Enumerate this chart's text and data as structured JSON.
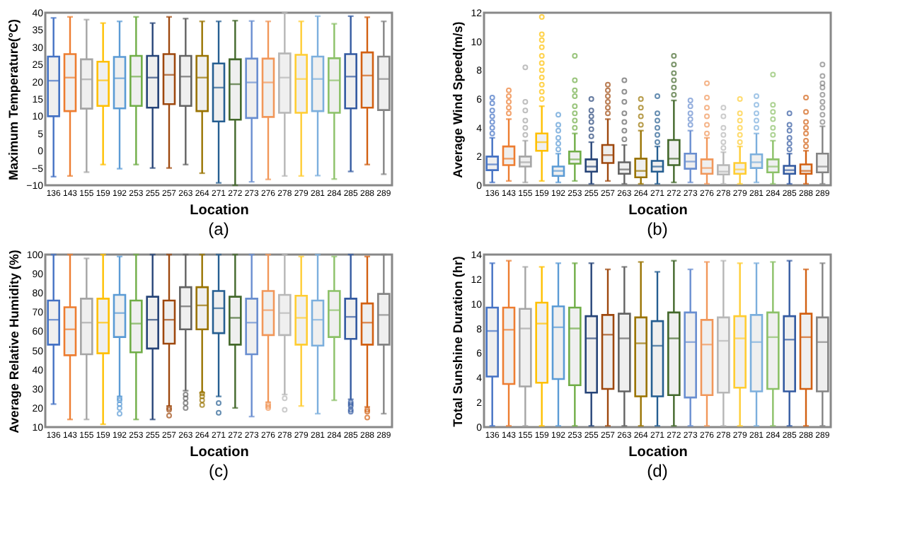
{
  "chart_data": [
    {
      "type": "box",
      "xlabel": "Location",
      "ylabel": "Maximum Temperature(°C)",
      "annotations": [
        "(a)"
      ],
      "categories": [
        "136",
        "143",
        "155",
        "159",
        "192",
        "253",
        "255",
        "257",
        "263",
        "264",
        "271",
        "272",
        "273",
        "276",
        "278",
        "279",
        "281",
        "284",
        "285",
        "288",
        "289"
      ],
      "colors": [
        "#4472c4",
        "#ed7d31",
        "#a5a5a5",
        "#ffc000",
        "#5b9bd5",
        "#70ad47",
        "#264478",
        "#9e480e",
        "#636363",
        "#997300",
        "#255e91",
        "#43682b",
        "#698ed0",
        "#f1975a",
        "#b7b7b7",
        "#ffcd33",
        "#7cafdd",
        "#8cc168",
        "#335aa1",
        "#d26012",
        "#848484"
      ],
      "ylim": [
        -10,
        40
      ],
      "yticks": [
        -10,
        -5,
        0,
        5,
        10,
        15,
        20,
        25,
        30,
        35,
        40
      ],
      "boxes": [
        {
          "low": -7.5,
          "q1": 10,
          "median": 20.3,
          "q3": 27.3,
          "high": 38.5
        },
        {
          "low": -7.3,
          "q1": 11.5,
          "median": 21.2,
          "q3": 28,
          "high": 38.8
        },
        {
          "low": -6.2,
          "q1": 12.2,
          "median": 20.7,
          "q3": 26.5,
          "high": 38
        },
        {
          "low": -4,
          "q1": 13,
          "median": 20.4,
          "q3": 25.8,
          "high": 37
        },
        {
          "low": -5.2,
          "q1": 12.3,
          "median": 21,
          "q3": 27.2,
          "high": 37.5
        },
        {
          "low": -4,
          "q1": 13,
          "median": 21.5,
          "q3": 27.5,
          "high": 38.8
        },
        {
          "low": -5,
          "q1": 12.5,
          "median": 21.2,
          "q3": 27.5,
          "high": 37
        },
        {
          "low": -5,
          "q1": 13.5,
          "median": 22,
          "q3": 28,
          "high": 38.8
        },
        {
          "low": -4,
          "q1": 13,
          "median": 21.5,
          "q3": 27.5,
          "high": 38.3
        },
        {
          "low": -6.5,
          "q1": 11.5,
          "median": 21.2,
          "q3": 27.5,
          "high": 37.5
        },
        {
          "low": -9.3,
          "q1": 8.5,
          "median": 18.3,
          "q3": 25.3,
          "high": 37.5
        },
        {
          "low": -10,
          "q1": 9,
          "median": 19.3,
          "q3": 26.5,
          "high": 37.7
        },
        {
          "low": -9,
          "q1": 9.5,
          "median": 19.8,
          "q3": 26.7,
          "high": 37.6
        },
        {
          "low": -8.3,
          "q1": 9.8,
          "median": 19.8,
          "q3": 26.7,
          "high": 37.5
        },
        {
          "low": -7.3,
          "q1": 11,
          "median": 21.2,
          "q3": 28.2,
          "high": 40
        },
        {
          "low": -7.3,
          "q1": 11,
          "median": 20.8,
          "q3": 27.8,
          "high": 37.5
        },
        {
          "low": -7.2,
          "q1": 11.5,
          "median": 20.8,
          "q3": 27.3,
          "high": 39
        },
        {
          "low": -8.2,
          "q1": 11,
          "median": 20.4,
          "q3": 26.8,
          "high": 36.8
        },
        {
          "low": -6,
          "q1": 12.3,
          "median": 21.5,
          "q3": 28,
          "high": 39
        },
        {
          "low": -4,
          "q1": 12.5,
          "median": 21.8,
          "q3": 28.5,
          "high": 38.7
        },
        {
          "low": -6.8,
          "q1": 11.8,
          "median": 20.8,
          "q3": 27.3,
          "high": 37.5
        }
      ]
    },
    {
      "type": "box",
      "xlabel": "Location",
      "ylabel": "Average Wind Speed(m/s)",
      "annotations": [
        "(b)"
      ],
      "categories": [
        "136",
        "143",
        "155",
        "159",
        "192",
        "253",
        "255",
        "257",
        "263",
        "264",
        "271",
        "272",
        "273",
        "276",
        "278",
        "279",
        "281",
        "284",
        "285",
        "288",
        "289"
      ],
      "colors": [
        "#4472c4",
        "#ed7d31",
        "#a5a5a5",
        "#ffc000",
        "#5b9bd5",
        "#70ad47",
        "#264478",
        "#9e480e",
        "#636363",
        "#997300",
        "#255e91",
        "#43682b",
        "#698ed0",
        "#f1975a",
        "#b7b7b7",
        "#ffcd33",
        "#7cafdd",
        "#8cc168",
        "#335aa1",
        "#d26012",
        "#848484"
      ],
      "ylim": [
        0,
        12
      ],
      "yticks": [
        0,
        2,
        4,
        6,
        8,
        10,
        12
      ],
      "boxes": [
        {
          "low": 0.2,
          "q1": 1.05,
          "median": 1.45,
          "q3": 2.0,
          "high": 3.3,
          "outliers": [
            3.6,
            4.0,
            4.4,
            4.8,
            5.2,
            5.7,
            6.1
          ]
        },
        {
          "low": 0.3,
          "q1": 1.4,
          "median": 1.85,
          "q3": 2.7,
          "high": 4.6,
          "outliers": [
            5.0,
            5.4,
            5.8,
            6.2,
            6.6
          ]
        },
        {
          "low": 0.2,
          "q1": 1.3,
          "median": 1.6,
          "q3": 2.0,
          "high": 3.1,
          "outliers": [
            3.5,
            4.0,
            4.5,
            5.2,
            5.8,
            8.2
          ]
        },
        {
          "low": 0.3,
          "q1": 2.4,
          "median": 3.0,
          "q3": 3.6,
          "high": 5.5,
          "outliers": [
            6.0,
            6.5,
            7.0,
            7.5,
            8.0,
            8.5,
            9.0,
            9.6,
            10.1,
            10.5,
            11.7
          ]
        },
        {
          "low": 0.2,
          "q1": 0.65,
          "median": 1.0,
          "q3": 1.3,
          "high": 2.2,
          "outliers": [
            2.5,
            2.9,
            3.3,
            3.8,
            4.2,
            4.9
          ]
        },
        {
          "low": 0.3,
          "q1": 1.5,
          "median": 1.8,
          "q3": 2.35,
          "high": 3.6,
          "outliers": [
            4.0,
            4.5,
            5.0,
            5.5,
            6.2,
            6.6,
            7.3,
            9.0
          ]
        },
        {
          "low": 0.1,
          "q1": 0.95,
          "median": 1.3,
          "q3": 1.8,
          "high": 3.0,
          "outliers": [
            3.4,
            3.9,
            4.4,
            4.8,
            5.2,
            6.0
          ]
        },
        {
          "low": 0.3,
          "q1": 1.55,
          "median": 2.1,
          "q3": 2.8,
          "high": 4.6,
          "outliers": [
            5.0,
            5.4,
            5.8,
            6.2,
            6.6,
            7.0
          ]
        },
        {
          "low": 0.1,
          "q1": 0.8,
          "median": 1.1,
          "q3": 1.6,
          "high": 2.8,
          "outliers": [
            3.2,
            3.8,
            4.4,
            5.0,
            5.8,
            6.5,
            7.3
          ]
        },
        {
          "low": 0.1,
          "q1": 0.55,
          "median": 1.0,
          "q3": 1.85,
          "high": 3.8,
          "outliers": [
            4.2,
            4.8,
            5.4,
            6.0
          ]
        },
        {
          "low": 0.1,
          "q1": 0.95,
          "median": 1.3,
          "q3": 1.7,
          "high": 2.7,
          "outliers": [
            3.0,
            3.5,
            4.0,
            4.5,
            5.0,
            6.2
          ]
        },
        {
          "low": 0.2,
          "q1": 1.4,
          "median": 1.85,
          "q3": 3.15,
          "high": 5.9,
          "outliers": [
            6.3,
            6.8,
            7.3,
            7.8,
            8.4,
            9.0
          ]
        },
        {
          "low": 0.2,
          "q1": 1.15,
          "median": 1.65,
          "q3": 2.2,
          "high": 3.8,
          "outliers": [
            4.2,
            4.6,
            5.0,
            5.5,
            5.9
          ]
        },
        {
          "low": 0.1,
          "q1": 0.8,
          "median": 1.2,
          "q3": 1.8,
          "high": 3.3,
          "outliers": [
            3.6,
            4.2,
            4.8,
            5.4,
            6.1,
            7.1
          ]
        },
        {
          "low": 0.1,
          "q1": 0.75,
          "median": 0.95,
          "q3": 1.4,
          "high": 2.3,
          "outliers": [
            2.6,
            3.0,
            3.5,
            4.0,
            4.8,
            5.4
          ]
        },
        {
          "low": 0.1,
          "q1": 0.8,
          "median": 1.1,
          "q3": 1.55,
          "high": 2.7,
          "outliers": [
            3.0,
            3.5,
            4.0,
            4.5,
            5.0,
            6.0
          ]
        },
        {
          "low": 0.2,
          "q1": 1.2,
          "median": 1.6,
          "q3": 2.15,
          "high": 3.6,
          "outliers": [
            4.0,
            4.5,
            5.0,
            5.6,
            6.2
          ]
        },
        {
          "low": 0.1,
          "q1": 0.9,
          "median": 1.3,
          "q3": 1.8,
          "high": 3.1,
          "outliers": [
            3.5,
            4.0,
            4.6,
            5.1,
            5.6,
            7.7
          ]
        },
        {
          "low": 0.1,
          "q1": 0.8,
          "median": 1.05,
          "q3": 1.35,
          "high": 2.2,
          "outliers": [
            2.5,
            2.9,
            3.3,
            3.8,
            4.2,
            5.0
          ]
        },
        {
          "low": 0.1,
          "q1": 0.8,
          "median": 1.0,
          "q3": 1.45,
          "high": 2.4,
          "outliers": [
            2.7,
            3.1,
            3.6,
            4.0,
            4.4,
            5.1,
            6.1
          ]
        },
        {
          "low": 0.1,
          "q1": 0.9,
          "median": 1.3,
          "q3": 2.2,
          "high": 4.1,
          "outliers": [
            4.4,
            4.9,
            5.4,
            5.8,
            6.3,
            6.8,
            7.1,
            7.6,
            8.4
          ]
        }
      ]
    },
    {
      "type": "box",
      "xlabel": "Location",
      "ylabel": "Average Relative Humidity (%)",
      "annotations": [
        "(c)"
      ],
      "categories": [
        "136",
        "143",
        "155",
        "159",
        "192",
        "253",
        "255",
        "257",
        "263",
        "264",
        "271",
        "272",
        "273",
        "276",
        "278",
        "279",
        "281",
        "284",
        "285",
        "288",
        "289"
      ],
      "colors": [
        "#4472c4",
        "#ed7d31",
        "#a5a5a5",
        "#ffc000",
        "#5b9bd5",
        "#70ad47",
        "#264478",
        "#9e480e",
        "#636363",
        "#997300",
        "#255e91",
        "#43682b",
        "#698ed0",
        "#f1975a",
        "#b7b7b7",
        "#ffcd33",
        "#7cafdd",
        "#8cc168",
        "#335aa1",
        "#d26012",
        "#848484"
      ],
      "ylim": [
        10,
        100
      ],
      "yticks": [
        10,
        20,
        30,
        40,
        50,
        60,
        70,
        80,
        90,
        100
      ],
      "boxes": [
        {
          "low": 22,
          "q1": 53,
          "median": 66,
          "q3": 76,
          "high": 100
        },
        {
          "low": 14,
          "q1": 47.5,
          "median": 61,
          "q3": 72.5,
          "high": 100
        },
        {
          "low": 14,
          "q1": 48,
          "median": 64.5,
          "q3": 77,
          "high": 98
        },
        {
          "low": 11.5,
          "q1": 48.5,
          "median": 64.5,
          "q3": 77,
          "high": 100
        },
        {
          "low": 26,
          "q1": 57,
          "median": 69.5,
          "q3": 79,
          "high": 99,
          "outliers": [
            17,
            20,
            22,
            24,
            25
          ]
        },
        {
          "low": 14,
          "q1": 49,
          "median": 64,
          "q3": 76,
          "high": 100
        },
        {
          "low": 14,
          "q1": 51,
          "median": 66,
          "q3": 78,
          "high": 100
        },
        {
          "low": 21,
          "q1": 53.5,
          "median": 66,
          "q3": 76,
          "high": 100,
          "outliers": [
            16,
            19,
            20
          ]
        },
        {
          "low": 29,
          "q1": 61,
          "median": 73,
          "q3": 83,
          "high": 100,
          "outliers": [
            20,
            22.5,
            25,
            27
          ]
        },
        {
          "low": 28,
          "q1": 61,
          "median": 73.5,
          "q3": 83,
          "high": 100,
          "outliers": [
            21.5,
            24,
            26,
            27.5
          ]
        },
        {
          "low": 26,
          "q1": 59,
          "median": 72,
          "q3": 81,
          "high": 100,
          "outliers": [
            17.5,
            22.5
          ]
        },
        {
          "low": 20,
          "q1": 53,
          "median": 67,
          "q3": 78,
          "high": 100
        },
        {
          "low": 15.5,
          "q1": 48,
          "median": 64.5,
          "q3": 77,
          "high": 100
        },
        {
          "low": 23,
          "q1": 58,
          "median": 71,
          "q3": 81,
          "high": 100,
          "outliers": [
            20,
            21,
            22
          ]
        },
        {
          "low": 27,
          "q1": 58,
          "median": 69.5,
          "q3": 79,
          "high": 100,
          "outliers": [
            19,
            25
          ]
        },
        {
          "low": 21,
          "q1": 53,
          "median": 67,
          "q3": 78.5,
          "high": 99
        },
        {
          "low": 17,
          "q1": 52.5,
          "median": 66,
          "q3": 76,
          "high": 100
        },
        {
          "low": 24,
          "q1": 57,
          "median": 71,
          "q3": 81,
          "high": 99
        },
        {
          "low": 24.5,
          "q1": 56,
          "median": 67.5,
          "q3": 77,
          "high": 100,
          "outliers": [
            18,
            19,
            21,
            22,
            23
          ]
        },
        {
          "low": 20.5,
          "q1": 53,
          "median": 64.5,
          "q3": 74.5,
          "high": 99,
          "outliers": [
            15,
            18,
            19
          ]
        },
        {
          "low": 17,
          "q1": 53,
          "median": 68.5,
          "q3": 79.5,
          "high": 100
        }
      ]
    },
    {
      "type": "box",
      "xlabel": "Location",
      "ylabel": "Total Sunshine Duration (hr)",
      "annotations": [
        "(d)"
      ],
      "categories": [
        "136",
        "143",
        "155",
        "159",
        "192",
        "253",
        "255",
        "257",
        "263",
        "264",
        "271",
        "272",
        "273",
        "276",
        "278",
        "279",
        "281",
        "284",
        "285",
        "288",
        "289"
      ],
      "colors": [
        "#4472c4",
        "#ed7d31",
        "#a5a5a5",
        "#ffc000",
        "#5b9bd5",
        "#70ad47",
        "#264478",
        "#9e480e",
        "#636363",
        "#997300",
        "#255e91",
        "#43682b",
        "#698ed0",
        "#f1975a",
        "#b7b7b7",
        "#ffcd33",
        "#7cafdd",
        "#8cc168",
        "#335aa1",
        "#d26012",
        "#848484"
      ],
      "ylim": [
        0,
        14
      ],
      "yticks": [
        0,
        2,
        4,
        6,
        8,
        10,
        12,
        14
      ],
      "boxes": [
        {
          "low": 0.1,
          "q1": 4.1,
          "median": 7.8,
          "q3": 9.7,
          "high": 13.3
        },
        {
          "low": 0.1,
          "q1": 3.5,
          "median": 7.9,
          "q3": 9.7,
          "high": 13.5
        },
        {
          "low": 0.1,
          "q1": 3.3,
          "median": 8.0,
          "q3": 9.6,
          "high": 13.0
        },
        {
          "low": 0.1,
          "q1": 3.6,
          "median": 8.4,
          "q3": 10.1,
          "high": 13.0
        },
        {
          "low": 0.1,
          "q1": 3.9,
          "median": 8.1,
          "q3": 9.8,
          "high": 13.3
        },
        {
          "low": 0.1,
          "q1": 3.4,
          "median": 8.0,
          "q3": 9.7,
          "high": 13.3
        },
        {
          "low": 0.1,
          "q1": 2.8,
          "median": 7.2,
          "q3": 9.0,
          "high": 13.3
        },
        {
          "low": 0.1,
          "q1": 3.1,
          "median": 7.5,
          "q3": 9.1,
          "high": 12.8
        },
        {
          "low": 0.1,
          "q1": 2.9,
          "median": 7.2,
          "q3": 9.2,
          "high": 13.0
        },
        {
          "low": 0.1,
          "q1": 2.5,
          "median": 6.8,
          "q3": 8.9,
          "high": 13.4
        },
        {
          "low": 0.1,
          "q1": 2.5,
          "median": 6.6,
          "q3": 8.6,
          "high": 12.6
        },
        {
          "low": 0.1,
          "q1": 2.6,
          "median": 7.2,
          "q3": 9.3,
          "high": 13.5
        },
        {
          "low": 0.1,
          "q1": 2.4,
          "median": 6.9,
          "q3": 9.3,
          "high": 12.8
        },
        {
          "low": 0.1,
          "q1": 2.6,
          "median": 6.7,
          "q3": 8.7,
          "high": 13.4
        },
        {
          "low": 0.1,
          "q1": 2.8,
          "median": 7.0,
          "q3": 8.9,
          "high": 13.5
        },
        {
          "low": 0.1,
          "q1": 3.2,
          "median": 7.2,
          "q3": 9.0,
          "high": 13.3
        },
        {
          "low": 0.1,
          "q1": 2.9,
          "median": 6.9,
          "q3": 9.1,
          "high": 13.3
        },
        {
          "low": 0.1,
          "q1": 3.1,
          "median": 7.3,
          "q3": 9.3,
          "high": 13.4
        },
        {
          "low": 0.1,
          "q1": 2.9,
          "median": 7.1,
          "q3": 9.0,
          "high": 13.5
        },
        {
          "low": 0.1,
          "q1": 3.1,
          "median": 7.3,
          "q3": 9.2,
          "high": 12.8
        },
        {
          "low": 0.1,
          "q1": 2.9,
          "median": 6.9,
          "q3": 8.9,
          "high": 13.3
        }
      ]
    }
  ]
}
